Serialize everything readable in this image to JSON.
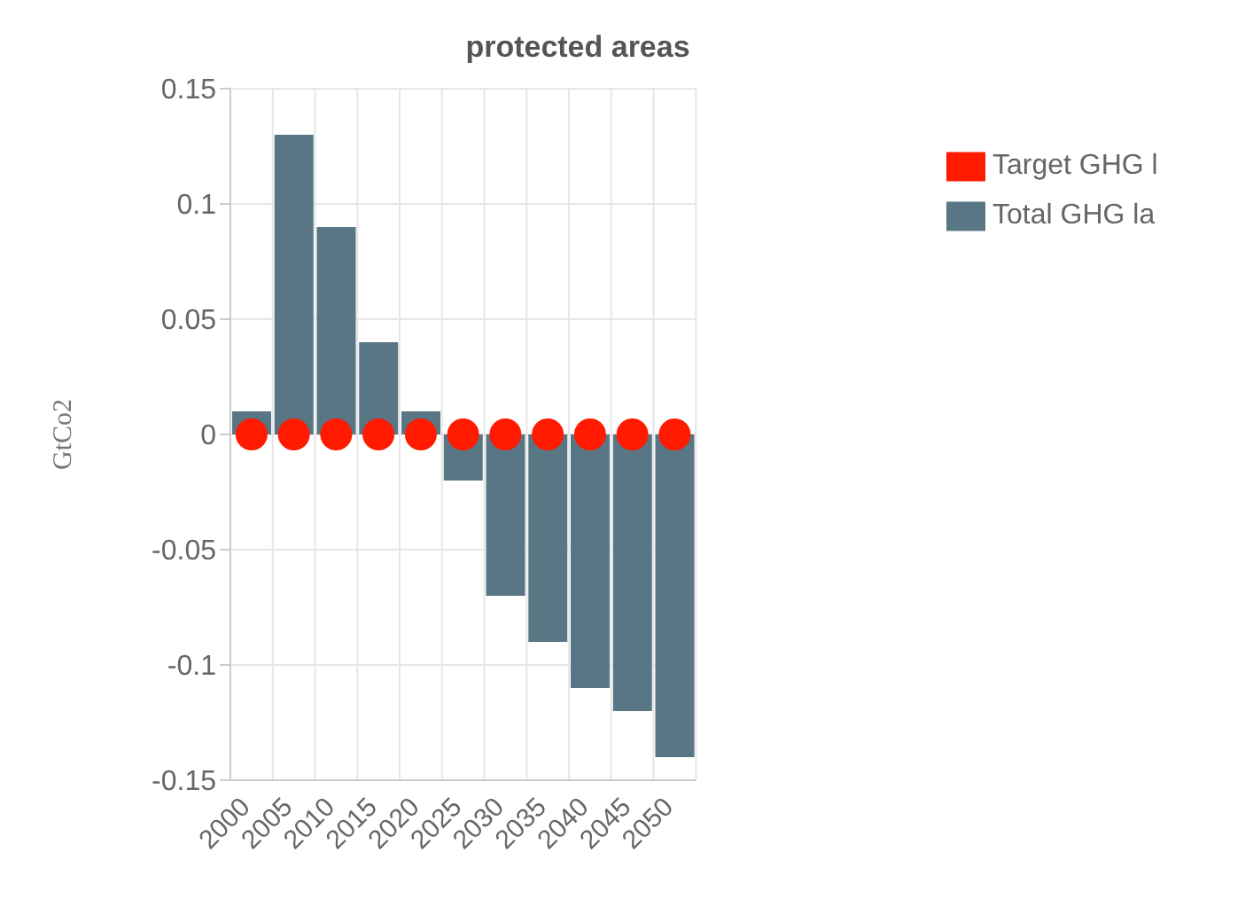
{
  "chart_data": {
    "type": "bar",
    "title": "protected areas",
    "ylabel": "GtCo2",
    "categories": [
      "2000",
      "2005",
      "2010",
      "2015",
      "2020",
      "2025",
      "2030",
      "2035",
      "2040",
      "2045",
      "2050"
    ],
    "series": [
      {
        "name": "Target GHG l",
        "type": "scatter",
        "color": "#ff1a00",
        "marker": "circle",
        "values": [
          0,
          0,
          0,
          0,
          0,
          0,
          0,
          0,
          0,
          0,
          0
        ]
      },
      {
        "name": "Total GHG la",
        "color": "#587684",
        "values": [
          0.01,
          0.13,
          0.09,
          0.04,
          0.01,
          -0.02,
          -0.07,
          -0.09,
          -0.11,
          -0.12,
          -0.14
        ]
      }
    ],
    "ylim": [
      -0.15,
      0.15
    ],
    "yticks": [
      -0.15,
      -0.1,
      -0.05,
      0,
      0.05,
      0.1,
      0.15
    ],
    "grid": true,
    "legend": "top right"
  }
}
